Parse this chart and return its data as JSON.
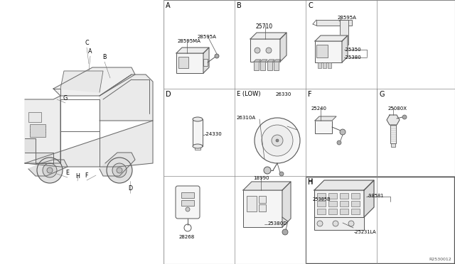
{
  "bg_color": "#ffffff",
  "line_color": "#555555",
  "text_color": "#000000",
  "part_code": "R2530012",
  "cols": [
    230,
    330,
    430,
    530,
    640
  ],
  "rows": [
    0,
    125,
    248,
    372
  ],
  "sections": {
    "A": {
      "label": "A",
      "col": 0,
      "row": 0
    },
    "B": {
      "label": "B",
      "col": 1,
      "row": 0
    },
    "C": {
      "label": "C",
      "col": 2,
      "row": 0
    },
    "D": {
      "label": "D",
      "col": 0,
      "row": 1
    },
    "E": {
      "label": "E (LOW)",
      "col": 1,
      "row": 1
    },
    "F": {
      "label": "F",
      "col": 2,
      "row": 1
    },
    "G": {
      "label": "G",
      "col": 3,
      "row": 1
    },
    "H": {
      "label": "H",
      "col": 2,
      "row": 2
    }
  },
  "parts": {
    "A": [
      "28595MA",
      "28595A"
    ],
    "B": [
      "25710"
    ],
    "C": [
      "28595A",
      "-25350",
      "-25380"
    ],
    "D": [
      "-24330"
    ],
    "E": [
      "26330",
      "26310A"
    ],
    "F": [
      "25240"
    ],
    "G": [
      "25080X"
    ],
    "BL": [
      "28268"
    ],
    "BM": [
      "18990",
      "25380D"
    ],
    "H": [
      "25385B",
      "-98581",
      "-25231LA"
    ]
  },
  "car_labels": [
    [
      "C",
      122,
      60
    ],
    [
      "A",
      127,
      72
    ],
    [
      "B",
      147,
      80
    ],
    [
      "G",
      92,
      138
    ],
    [
      "E",
      95,
      243
    ],
    [
      "H",
      109,
      248
    ],
    [
      "F",
      122,
      247
    ],
    [
      "D",
      183,
      265
    ]
  ]
}
